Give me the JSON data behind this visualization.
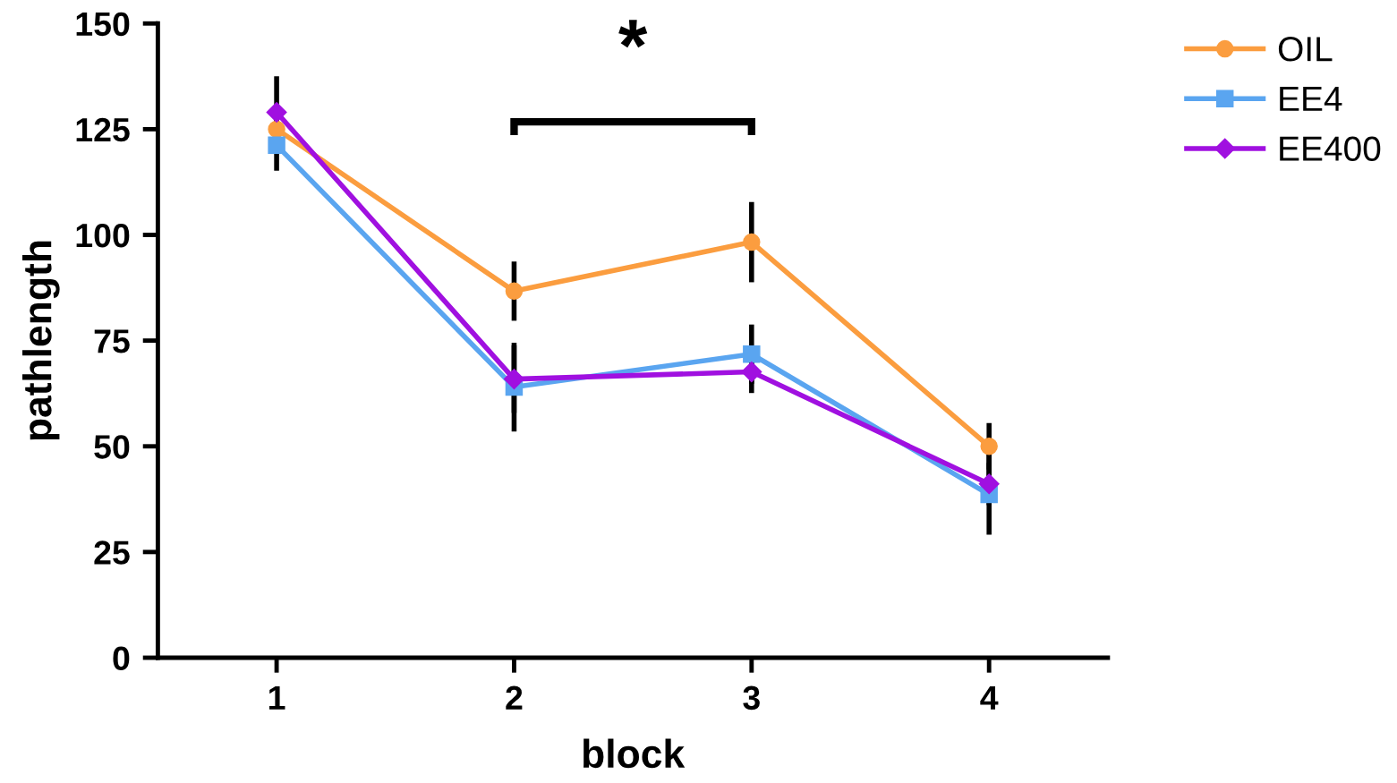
{
  "chart_data": {
    "type": "line",
    "xlabel": "block",
    "ylabel": "pathlength",
    "x": [
      1,
      2,
      3,
      4
    ],
    "xlim": [
      0.5,
      4.5
    ],
    "xticks": [
      1,
      2,
      3,
      4
    ],
    "ylim": [
      0,
      150
    ],
    "yticks": [
      0,
      25,
      50,
      75,
      100,
      125,
      150
    ],
    "grid": false,
    "legend": "top right",
    "line_style": "solid",
    "series": [
      {
        "name": "OIL",
        "color": "#fb9d3f",
        "marker": "circle",
        "values": [
          125,
          86.7,
          98.3,
          50
        ],
        "errors": [
          null,
          7,
          9.5,
          5.5
        ]
      },
      {
        "name": "EE4",
        "color": "#5aa5f0",
        "marker": "square",
        "values": [
          121.2,
          64,
          71.8,
          38.6
        ],
        "errors": [
          6,
          10.5,
          7,
          9.5
        ]
      },
      {
        "name": "EE400",
        "color": "#a010e0",
        "marker": "diamond",
        "values": [
          129,
          65.9,
          67.6,
          41.1
        ],
        "errors": [
          8.5,
          8,
          5,
          5
        ]
      }
    ],
    "annotations": [
      "*"
    ]
  }
}
